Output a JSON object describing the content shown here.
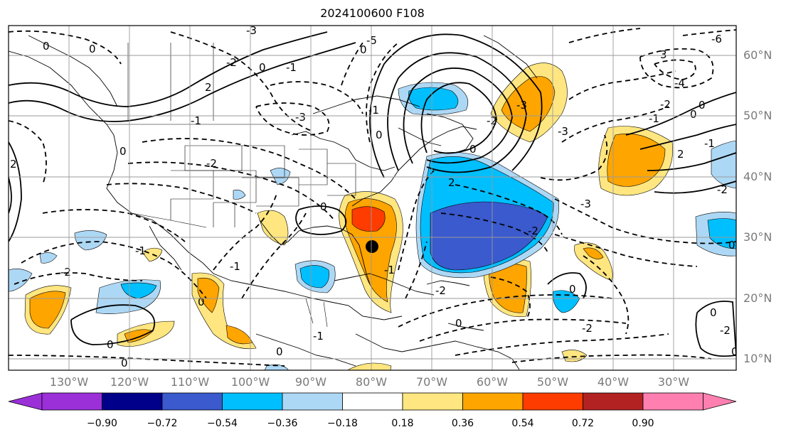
{
  "title": "2024100600 F108",
  "lat_labels": [
    "60°N",
    "50°N",
    "40°N",
    "30°N",
    "20°N",
    "10°N"
  ],
  "lon_labels": [
    "130°W",
    "120°W",
    "110°W",
    "100°W",
    "90°W",
    "80°W",
    "70°W",
    "60°W",
    "50°W",
    "40°W",
    "30°W"
  ],
  "colorbar": {
    "tick_labels": [
      "−0.90",
      "−0.72",
      "−0.54",
      "−0.36",
      "−0.18",
      "0.18",
      "0.36",
      "0.54",
      "0.72",
      "0.90"
    ],
    "colors": [
      "#9b30d9",
      "#00008b",
      "#3a5acd",
      "#00bfff",
      "#add8f5",
      "#ffffff",
      "#ffe680",
      "#ffa500",
      "#ff3c00",
      "#b22222",
      "#ff80b0"
    ]
  },
  "contour_labels": [
    "-3",
    "0",
    "-2",
    "0",
    "2",
    "0",
    "-1",
    "-3",
    "-2",
    "0",
    "2",
    "3",
    "-1",
    "0",
    "-3",
    "-4",
    "-2",
    "-1",
    "0",
    "0",
    "2",
    "-1",
    "-2",
    "-3",
    "0",
    "-1",
    "-2",
    "-1",
    "0",
    "-2",
    "0",
    "-2",
    "0",
    "0",
    "-1",
    "0",
    "-2",
    "0",
    "0",
    "-2",
    "0",
    "2",
    "-1",
    "0",
    "0",
    "0",
    "-3",
    "-2",
    "-1",
    "-5",
    "-6"
  ],
  "marker": "storm-center-dot"
}
